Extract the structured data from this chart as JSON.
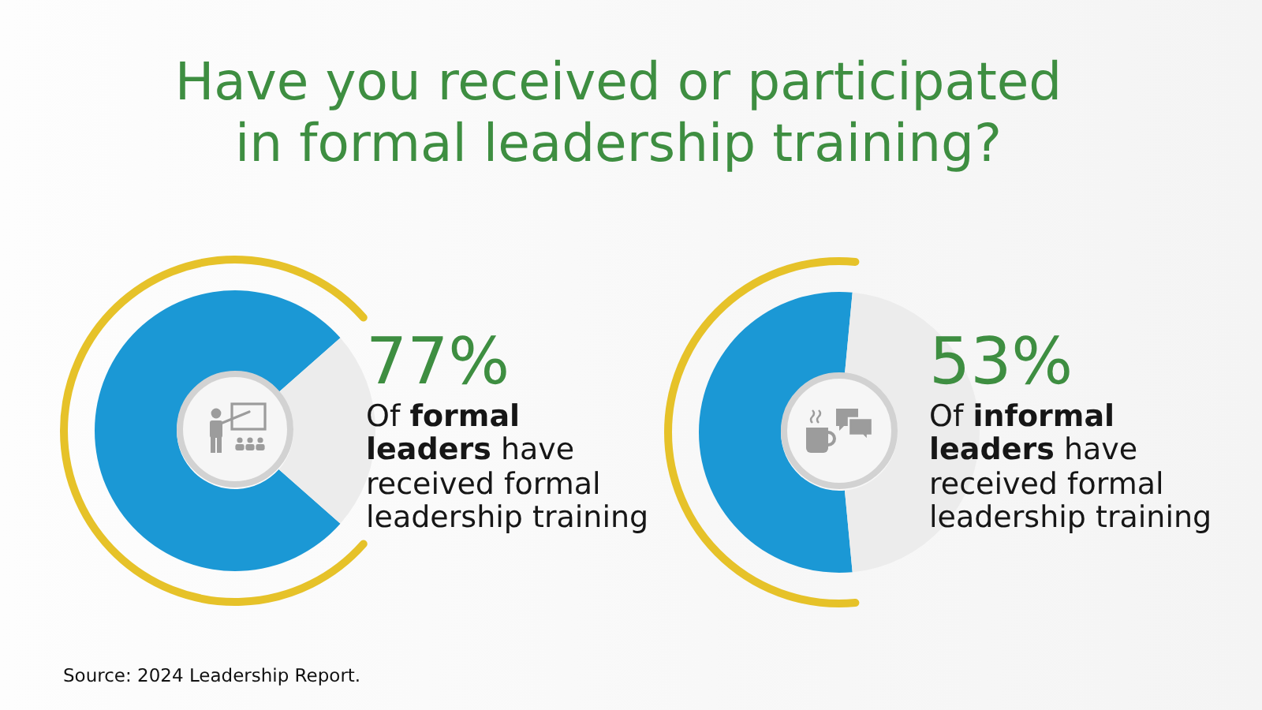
{
  "chart_data": [
    {
      "type": "donut",
      "title": "Have you received or participated in formal leadership training?",
      "categories": [
        null,
        null
      ],
      "values": [
        77,
        23
      ],
      "colors": [
        "#1b98d5",
        "#ececec"
      ],
      "annotations": [
        "77%",
        "Of formal leaders have received formal leadership training",
        "Source: 2024 Leadership Report."
      ]
    },
    {
      "type": "donut",
      "categories": [
        null,
        null
      ],
      "values": [
        53,
        47
      ],
      "colors": [
        "#1b98d5",
        "#ececec"
      ],
      "annotations": [
        "53%",
        "Of informal leaders have received formal leadership training"
      ]
    }
  ]
}
